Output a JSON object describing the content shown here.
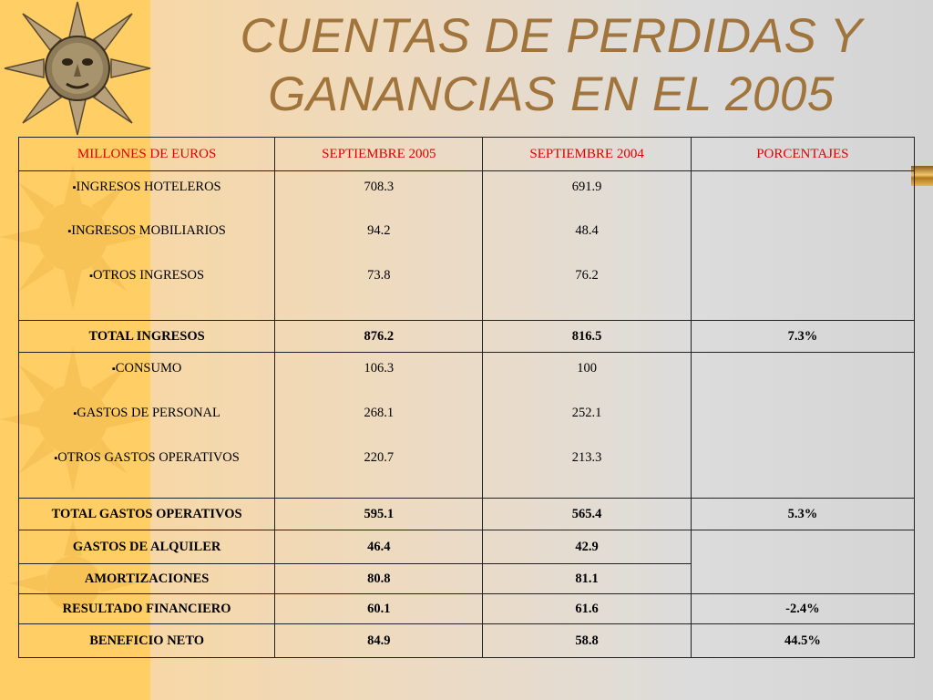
{
  "title_line1": "CUENTAS DE PERDIDAS Y",
  "title_line2": "GANANCIAS EN EL 2005",
  "headers": [
    "MILLONES DE EUROS",
    "SEPTIEMBRE 2005",
    "SEPTIEMBRE 2004",
    "PORCENTAJES"
  ],
  "ingresos": [
    {
      "label": "INGRESOS HOTELEROS",
      "v2005": "708.3",
      "v2004": "691.9"
    },
    {
      "label": "INGRESOS MOBILIARIOS",
      "v2005": "94.2",
      "v2004": "48.4"
    },
    {
      "label": "OTROS INGRESOS",
      "v2005": "73.8",
      "v2004": "76.2"
    }
  ],
  "total_ingresos": {
    "label": "TOTAL INGRESOS",
    "v2005": "876.2",
    "v2004": "816.5",
    "pct": "7.3%"
  },
  "gastos": [
    {
      "label": "CONSUMO",
      "v2005": "106.3",
      "v2004": "100"
    },
    {
      "label": "GASTOS DE PERSONAL",
      "v2005": "268.1",
      "v2004": "252.1"
    },
    {
      "label": "OTROS GASTOS OPERATIVOS",
      "v2005": "220.7",
      "v2004": "213.3"
    }
  ],
  "total_gastos": {
    "label": "TOTAL GASTOS OPERATIVOS",
    "v2005": "595.1",
    "v2004": "565.4",
    "pct": "5.3%"
  },
  "alquiler": {
    "label": "GASTOS DE ALQUILER",
    "v2005": "46.4",
    "v2004": "42.9"
  },
  "amortizaciones": {
    "label": "AMORTIZACIONES",
    "v2005": "80.8",
    "v2004": "81.1"
  },
  "financiero": {
    "label": "RESULTADO FINANCIERO",
    "v2005": "60.1",
    "v2004": "61.6",
    "pct": "-2.4%"
  },
  "beneficio": {
    "label": "BENEFICIO NETO",
    "v2005": "84.9",
    "v2004": "58.8",
    "pct": "44.5%"
  },
  "colors": {
    "title": "#a0743a",
    "header_text": "#e00000",
    "left_band": "#ffcf66"
  }
}
